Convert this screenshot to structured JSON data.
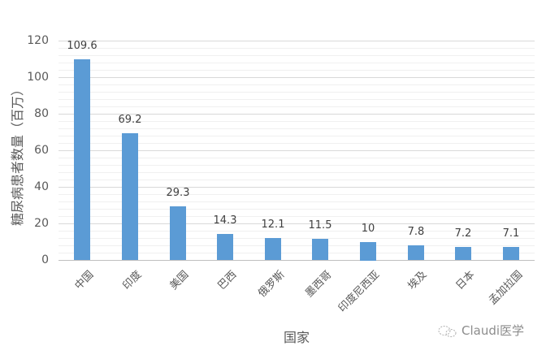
{
  "chart_data": {
    "type": "bar",
    "title": "",
    "xlabel": "国家",
    "ylabel": "糖尿病患者数量（百万）",
    "ylim": [
      0,
      120
    ],
    "yticks": [
      0,
      20,
      40,
      60,
      80,
      100,
      120
    ],
    "grid": true,
    "legend": null,
    "categories": [
      "中国",
      "印度",
      "美国",
      "巴西",
      "俄罗斯",
      "墨西哥",
      "印度尼西亚",
      "埃及",
      "日本",
      "孟加拉国"
    ],
    "values": [
      109.6,
      69.2,
      29.3,
      14.3,
      12.1,
      11.5,
      10,
      7.8,
      7.2,
      7.1
    ],
    "data_labels": [
      "109.6",
      "69.2",
      "29.3",
      "14.3",
      "12.1",
      "11.5",
      "10",
      "7.8",
      "7.2",
      "7.1"
    ],
    "bar_color": "#5b9bd5"
  },
  "watermark": {
    "text": "Claudi医学",
    "icon": "wechat-icon"
  }
}
